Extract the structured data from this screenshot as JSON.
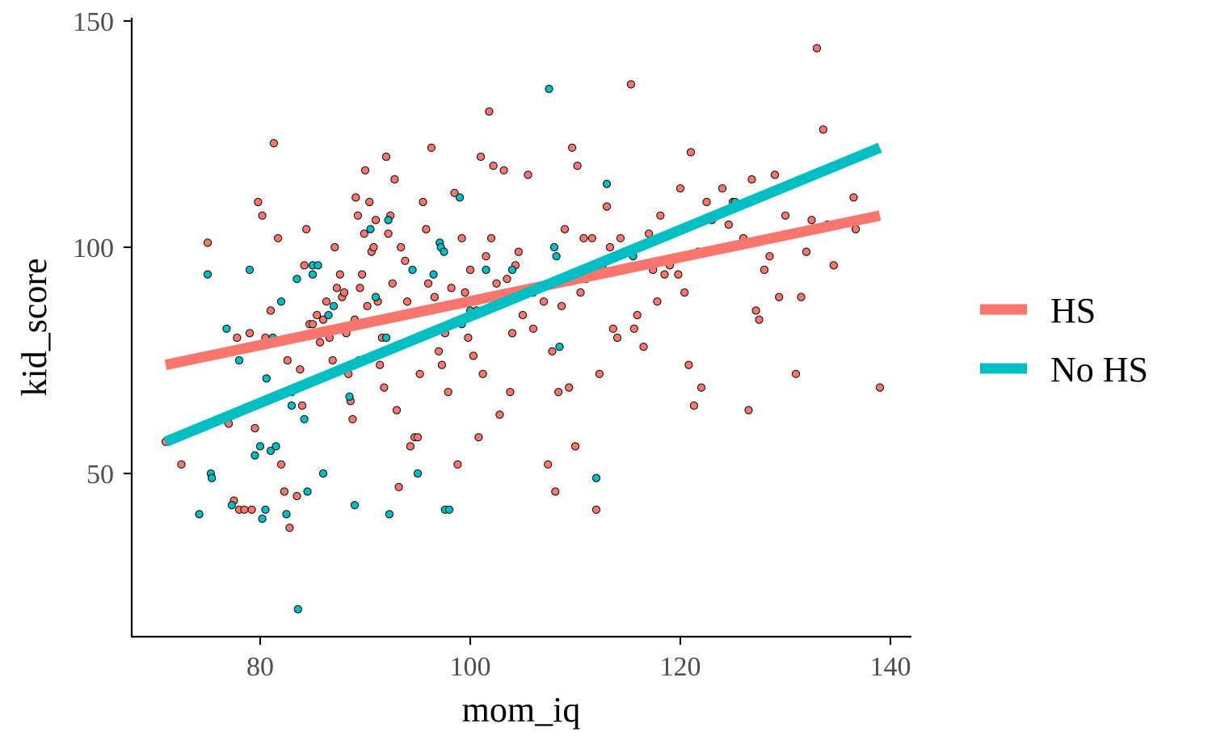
{
  "chart_data": {
    "type": "scatter",
    "title": "",
    "xlabel": "mom_iq",
    "ylabel": "kid_score",
    "xlim": [
      68,
      142
    ],
    "ylim": [
      14.5,
      150
    ],
    "xticks": [
      80,
      100,
      120,
      140
    ],
    "yticks": [
      50,
      100,
      150
    ],
    "x_tick_labels": [
      "80",
      "100",
      "120",
      "140"
    ],
    "y_tick_labels": [
      "50",
      "100",
      "150"
    ],
    "grid": false,
    "legend": {
      "position": "right"
    },
    "series": [
      {
        "name": "HS",
        "color": "#F8766D",
        "fit_line": {
          "x": [
            71,
            139
          ],
          "y": [
            74,
            107
          ]
        },
        "points": [
          [
            71,
            57
          ],
          [
            72.5,
            52
          ],
          [
            75,
            101
          ],
          [
            77,
            61
          ],
          [
            77.5,
            44
          ],
          [
            77.8,
            80
          ],
          [
            78,
            42
          ],
          [
            78.5,
            42
          ],
          [
            79,
            81
          ],
          [
            79.2,
            42
          ],
          [
            79.5,
            60
          ],
          [
            79.8,
            110
          ],
          [
            80.2,
            107
          ],
          [
            80.5,
            80
          ],
          [
            81,
            86
          ],
          [
            81.3,
            123
          ],
          [
            81.7,
            102
          ],
          [
            82,
            52
          ],
          [
            82.3,
            46
          ],
          [
            82.6,
            75
          ],
          [
            82.8,
            38
          ],
          [
            83,
            68
          ],
          [
            83.5,
            45
          ],
          [
            83.8,
            73
          ],
          [
            84,
            65
          ],
          [
            84.2,
            96
          ],
          [
            84.4,
            104
          ],
          [
            84.7,
            83
          ],
          [
            85,
            83
          ],
          [
            85.4,
            85
          ],
          [
            85.7,
            79
          ],
          [
            86,
            84
          ],
          [
            86.3,
            88
          ],
          [
            86.6,
            80
          ],
          [
            86.9,
            75
          ],
          [
            87.1,
            100
          ],
          [
            87.3,
            91
          ],
          [
            87.6,
            94
          ],
          [
            87.8,
            89
          ],
          [
            88,
            90
          ],
          [
            88.2,
            81
          ],
          [
            88.4,
            72
          ],
          [
            88.6,
            66
          ],
          [
            88.8,
            62
          ],
          [
            89,
            84
          ],
          [
            89.1,
            111
          ],
          [
            89.3,
            107
          ],
          [
            89.5,
            91
          ],
          [
            89.7,
            94
          ],
          [
            89.9,
            103
          ],
          [
            90,
            117
          ],
          [
            90.2,
            87
          ],
          [
            90.4,
            110
          ],
          [
            90.6,
            99
          ],
          [
            90.8,
            100
          ],
          [
            91,
            106
          ],
          [
            91.2,
            88
          ],
          [
            91.4,
            74
          ],
          [
            91.6,
            80
          ],
          [
            91.8,
            69
          ],
          [
            92,
            120
          ],
          [
            92.2,
            103
          ],
          [
            92.4,
            107
          ],
          [
            92.6,
            92
          ],
          [
            92.8,
            115
          ],
          [
            93,
            64
          ],
          [
            93.2,
            47
          ],
          [
            93.4,
            100
          ],
          [
            93.6,
            85
          ],
          [
            93.8,
            97
          ],
          [
            94,
            88
          ],
          [
            94.3,
            56
          ],
          [
            94.7,
            58
          ],
          [
            95,
            58
          ],
          [
            95.2,
            72
          ],
          [
            95.5,
            110
          ],
          [
            95.8,
            104
          ],
          [
            96,
            92
          ],
          [
            96.3,
            122
          ],
          [
            96.6,
            89
          ],
          [
            97,
            77
          ],
          [
            97.3,
            74
          ],
          [
            97.6,
            81
          ],
          [
            97.9,
            68
          ],
          [
            98.2,
            91
          ],
          [
            98.5,
            112
          ],
          [
            98.8,
            52
          ],
          [
            99,
            84
          ],
          [
            99.2,
            102
          ],
          [
            99.5,
            90
          ],
          [
            99.8,
            80
          ],
          [
            100,
            95
          ],
          [
            100.3,
            76
          ],
          [
            100.6,
            86
          ],
          [
            100.8,
            58
          ],
          [
            101,
            120
          ],
          [
            101.2,
            72
          ],
          [
            101.5,
            98
          ],
          [
            101.8,
            130
          ],
          [
            102,
            102
          ],
          [
            102.2,
            118
          ],
          [
            102.5,
            92
          ],
          [
            102.8,
            63
          ],
          [
            103,
            88
          ],
          [
            103.2,
            117
          ],
          [
            103.5,
            93
          ],
          [
            103.8,
            68
          ],
          [
            104,
            81
          ],
          [
            104.3,
            96
          ],
          [
            104.6,
            99
          ],
          [
            105,
            85
          ],
          [
            105.5,
            116
          ],
          [
            106,
            82
          ],
          [
            106.5,
            91
          ],
          [
            107,
            88
          ],
          [
            107.4,
            52
          ],
          [
            107.8,
            77
          ],
          [
            108.1,
            46
          ],
          [
            108.4,
            68
          ],
          [
            108.7,
            87
          ],
          [
            109,
            104
          ],
          [
            109.4,
            69
          ],
          [
            109.7,
            122
          ],
          [
            110,
            56
          ],
          [
            110.2,
            118
          ],
          [
            110.5,
            90
          ],
          [
            110.8,
            102
          ],
          [
            111,
            93
          ],
          [
            111.6,
            102
          ],
          [
            112,
            42
          ],
          [
            112.3,
            72
          ],
          [
            112.6,
            96
          ],
          [
            113,
            109
          ],
          [
            113.3,
            100
          ],
          [
            113.6,
            82
          ],
          [
            114,
            80
          ],
          [
            114.3,
            102
          ],
          [
            114.7,
            95
          ],
          [
            115,
            99
          ],
          [
            115.3,
            136
          ],
          [
            115.6,
            82
          ],
          [
            115.9,
            85
          ],
          [
            116.2,
            100
          ],
          [
            116.5,
            78
          ],
          [
            117,
            103
          ],
          [
            117.4,
            95
          ],
          [
            117.8,
            88
          ],
          [
            118.1,
            107
          ],
          [
            118.5,
            94
          ],
          [
            119,
            96
          ],
          [
            119.4,
            103
          ],
          [
            119.8,
            94
          ],
          [
            120,
            113
          ],
          [
            120.4,
            90
          ],
          [
            120.8,
            74
          ],
          [
            121,
            121
          ],
          [
            121.3,
            65
          ],
          [
            121.7,
            99
          ],
          [
            122,
            69
          ],
          [
            122.5,
            110
          ],
          [
            123,
            106
          ],
          [
            124,
            113
          ],
          [
            124.6,
            105
          ],
          [
            125,
            110
          ],
          [
            126,
            102
          ],
          [
            126.5,
            64
          ],
          [
            126.8,
            115
          ],
          [
            127.2,
            86
          ],
          [
            127.5,
            84
          ],
          [
            128,
            95
          ],
          [
            128.5,
            98
          ],
          [
            129,
            116
          ],
          [
            129.4,
            89
          ],
          [
            130,
            107
          ],
          [
            131,
            72
          ],
          [
            131.5,
            89
          ],
          [
            132,
            99
          ],
          [
            132.5,
            106
          ],
          [
            133,
            144
          ],
          [
            133.6,
            126
          ],
          [
            134,
            105
          ],
          [
            134.6,
            96
          ],
          [
            136.5,
            111
          ],
          [
            136.7,
            104
          ],
          [
            139,
            69
          ]
        ]
      },
      {
        "name": "No HS",
        "color": "#00BFC4",
        "fit_line": {
          "x": [
            71,
            139
          ],
          "y": [
            57,
            122
          ]
        },
        "points": [
          [
            74.2,
            41
          ],
          [
            75,
            94
          ],
          [
            75.3,
            50
          ],
          [
            75.4,
            49
          ],
          [
            76.8,
            82
          ],
          [
            77.3,
            43
          ],
          [
            78,
            75
          ],
          [
            79,
            95
          ],
          [
            79.5,
            54
          ],
          [
            80,
            56
          ],
          [
            80.2,
            40
          ],
          [
            80.5,
            42
          ],
          [
            80.6,
            71
          ],
          [
            81,
            55
          ],
          [
            81.2,
            80
          ],
          [
            81.5,
            56
          ],
          [
            82,
            88
          ],
          [
            82.5,
            41
          ],
          [
            83,
            65
          ],
          [
            83.5,
            93
          ],
          [
            83.6,
            20
          ],
          [
            84.2,
            62
          ],
          [
            84.5,
            46
          ],
          [
            85,
            94
          ],
          [
            85,
            96
          ],
          [
            85.5,
            96
          ],
          [
            86,
            50
          ],
          [
            86.5,
            85
          ],
          [
            87,
            87
          ],
          [
            88,
            82
          ],
          [
            88.5,
            67
          ],
          [
            89,
            43
          ],
          [
            89,
            83
          ],
          [
            89.4,
            75
          ],
          [
            90.5,
            104
          ],
          [
            91,
            89
          ],
          [
            92,
            80
          ],
          [
            92.2,
            106
          ],
          [
            92.3,
            41
          ],
          [
            94.5,
            95
          ],
          [
            95,
            50
          ],
          [
            96.5,
            94
          ],
          [
            97.1,
            101
          ],
          [
            97.2,
            100
          ],
          [
            97.5,
            99
          ],
          [
            97.6,
            42
          ],
          [
            98,
            42
          ],
          [
            99,
            111
          ],
          [
            99.2,
            83
          ],
          [
            100,
            86
          ],
          [
            101.5,
            95
          ],
          [
            104,
            95
          ],
          [
            106,
            90
          ],
          [
            107.5,
            135
          ],
          [
            108,
            100
          ],
          [
            108.2,
            98
          ],
          [
            108.5,
            78
          ],
          [
            112,
            49
          ],
          [
            114.6,
            99
          ],
          [
            115.5,
            98
          ],
          [
            113,
            114
          ],
          [
            123,
            107
          ],
          [
            125.2,
            110
          ]
        ]
      }
    ]
  }
}
